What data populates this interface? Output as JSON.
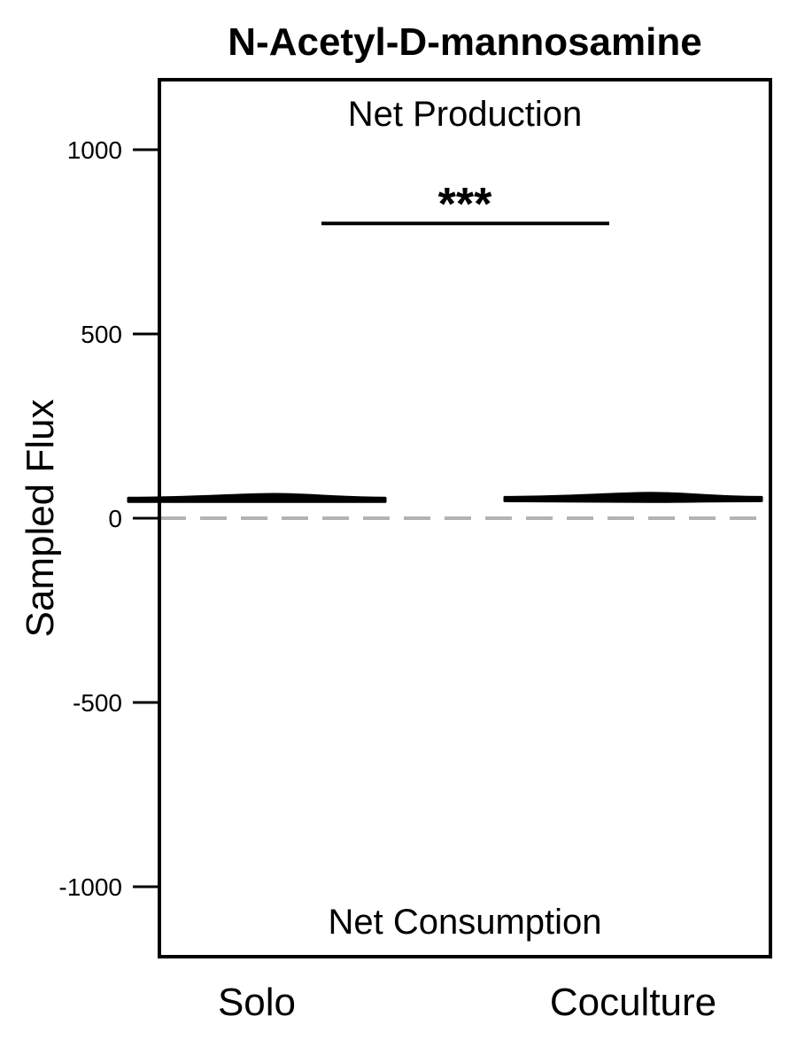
{
  "chart_data": {
    "type": "violin",
    "title": "N-Acetyl-D-mannosamine",
    "ylabel": "Sampled Flux",
    "xlabel": "",
    "ylim": [
      -1200,
      1190
    ],
    "yticks": [
      -1000,
      -500,
      0,
      500,
      1000
    ],
    "ytick_labels": [
      "-1000",
      "-500",
      "0",
      "500",
      "1000"
    ],
    "categories": [
      "Solo",
      "Coculture"
    ],
    "groups": [
      {
        "category": "Solo",
        "min": 45,
        "max": 65,
        "median": 50
      },
      {
        "category": "Coculture",
        "min": 45,
        "max": 68,
        "median": 52
      }
    ],
    "reference_line": {
      "y": 0,
      "style": "dashed",
      "color": "#b3b3b3"
    },
    "annotations": {
      "top": "Net Production",
      "bottom": "Net Consumption"
    },
    "significance": {
      "from": "Solo",
      "to": "Coculture",
      "y": 800,
      "label": "***"
    },
    "grid": false,
    "legend": "none"
  }
}
